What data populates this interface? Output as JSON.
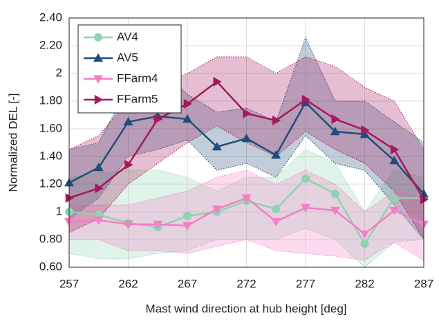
{
  "chart_data": {
    "type": "line",
    "xlabel": "Mast wind direction at hub height [deg]",
    "ylabel": "Normalized DEL [-]",
    "x": [
      257,
      259.5,
      262,
      264.5,
      267,
      269.5,
      272,
      274.5,
      277,
      279.5,
      282,
      284.5,
      287
    ],
    "xlim": [
      257,
      287
    ],
    "xticks": [
      257,
      262,
      267,
      272,
      277,
      282,
      287
    ],
    "ylim": [
      0.6,
      2.4
    ],
    "yticks": [
      {
        "value": 0.6,
        "label": "0.60"
      },
      {
        "value": 0.8,
        "label": "0.80"
      },
      1,
      {
        "value": 1.2,
        "label": "1.20"
      },
      {
        "value": 1.4,
        "label": "1.40"
      },
      {
        "value": 1.6,
        "label": "1.60"
      },
      {
        "value": 1.8,
        "label": "1.80"
      },
      2,
      {
        "value": 2.2,
        "label": "2.20"
      },
      {
        "value": 2.4,
        "label": "2.40"
      }
    ],
    "grid": true,
    "legend": "upper left",
    "series": [
      {
        "name": "AV4",
        "color": "#8fd3b1",
        "marker": "circle",
        "values": [
          1.0,
          0.98,
          0.92,
          0.89,
          0.97,
          1.0,
          1.08,
          1.02,
          1.24,
          1.13,
          0.77,
          1.1,
          1.1
        ],
        "lower": [
          0.7,
          0.66,
          0.66,
          0.7,
          0.72,
          0.8,
          0.8,
          0.8,
          0.88,
          0.8,
          0.6,
          0.78,
          0.8
        ],
        "upper": [
          1.25,
          1.28,
          1.3,
          1.3,
          1.25,
          1.15,
          1.25,
          1.25,
          1.45,
          1.35,
          1.0,
          1.3,
          1.25
        ]
      },
      {
        "name": "AV5",
        "color": "#1f4e79",
        "marker": "triangle-up",
        "values": [
          1.21,
          1.32,
          1.65,
          1.69,
          1.67,
          1.47,
          1.53,
          1.41,
          1.79,
          1.58,
          1.56,
          1.37,
          1.13
        ],
        "lower": [
          0.95,
          1.1,
          1.4,
          1.45,
          1.52,
          1.3,
          1.35,
          1.25,
          1.55,
          1.35,
          1.3,
          1.05,
          0.8
        ],
        "upper": [
          1.45,
          1.5,
          1.9,
          2.05,
          1.85,
          1.72,
          1.75,
          1.65,
          2.26,
          1.8,
          1.8,
          1.65,
          1.5
        ]
      },
      {
        "name": "FFarm4",
        "color": "#f37fc4",
        "marker": "triangle-down",
        "values": [
          0.93,
          0.94,
          0.91,
          0.91,
          0.9,
          1.02,
          1.1,
          0.93,
          1.03,
          1.01,
          0.84,
          1.01,
          0.91
        ],
        "lower": [
          0.8,
          0.8,
          0.72,
          0.72,
          0.7,
          0.75,
          0.8,
          0.72,
          0.7,
          0.68,
          0.65,
          0.78,
          0.65
        ],
        "upper": [
          1.05,
          1.05,
          1.05,
          1.1,
          1.15,
          1.25,
          1.3,
          1.2,
          1.3,
          1.2,
          1.0,
          1.15,
          1.1
        ]
      },
      {
        "name": "FFarm5",
        "color": "#a3195b",
        "marker": "triangle-right",
        "values": [
          1.1,
          1.17,
          1.34,
          1.67,
          1.78,
          1.94,
          1.71,
          1.66,
          1.81,
          1.67,
          1.59,
          1.45,
          1.09
        ],
        "lower": [
          0.85,
          0.95,
          1.2,
          1.35,
          1.5,
          1.62,
          1.5,
          1.4,
          1.58,
          1.45,
          1.35,
          1.15,
          0.8
        ],
        "upper": [
          1.45,
          1.55,
          1.8,
          1.9,
          2.0,
          2.12,
          2.12,
          2.0,
          2.12,
          2.05,
          1.9,
          1.8,
          1.45
        ]
      }
    ]
  }
}
